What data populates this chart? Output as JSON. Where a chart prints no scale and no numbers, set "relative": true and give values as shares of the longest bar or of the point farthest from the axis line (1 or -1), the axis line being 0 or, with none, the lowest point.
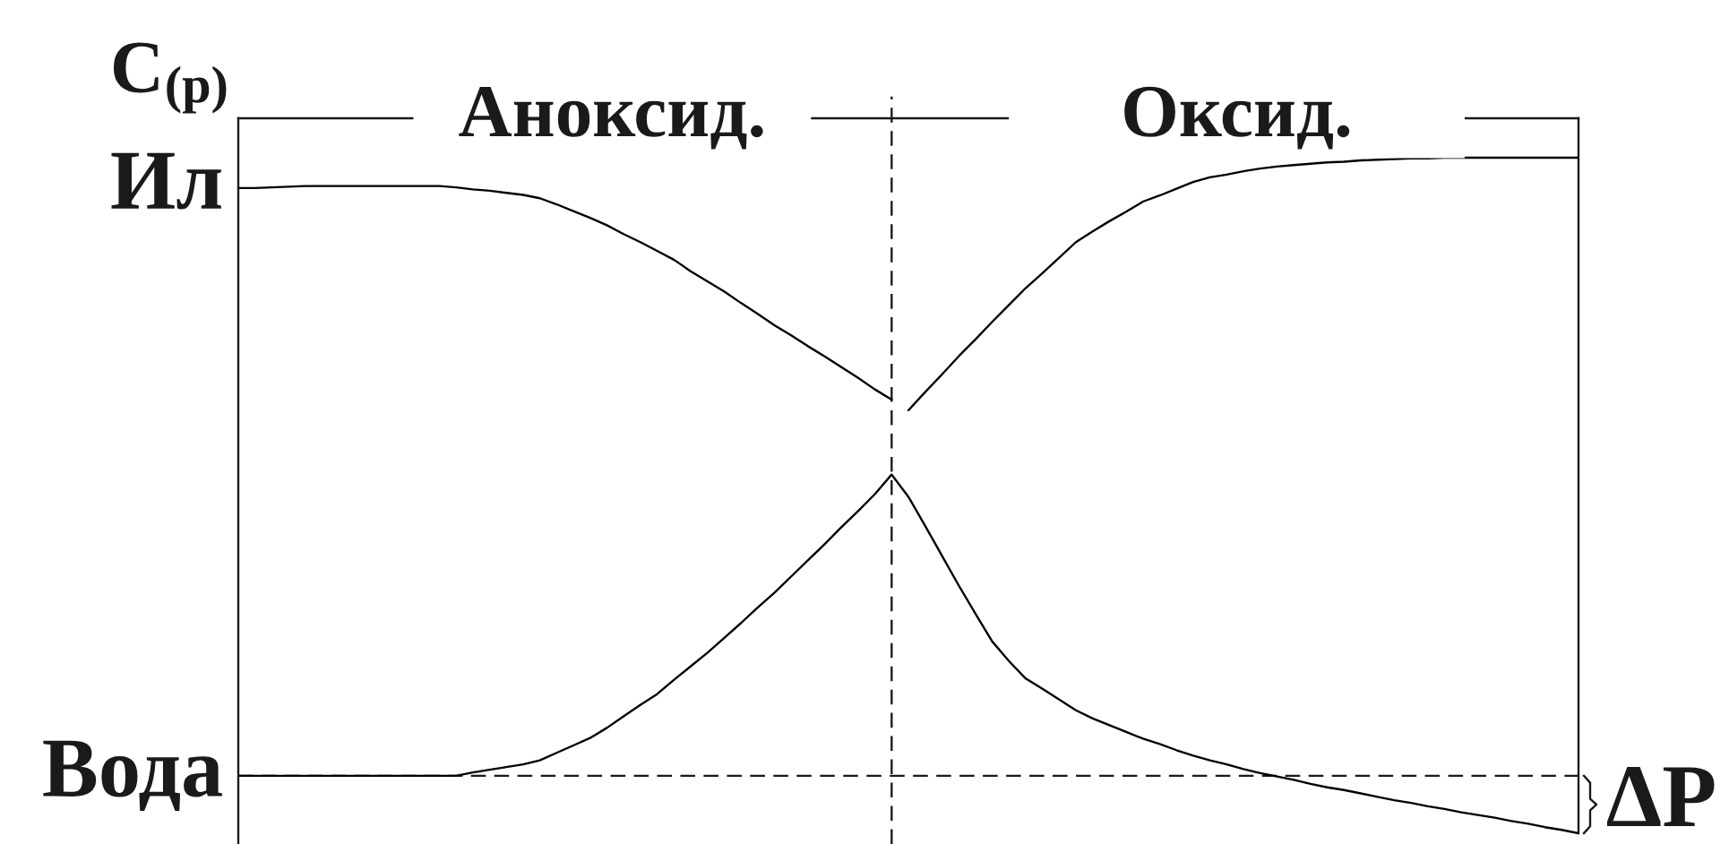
{
  "chart_data": {
    "type": "line",
    "relative": true,
    "ylabel": "C$_{(p)}$",
    "categories": [
      null,
      null,
      null,
      null,
      null,
      null,
      null,
      null,
      null,
      null,
      null,
      null,
      null,
      null,
      null,
      null,
      null,
      null,
      null,
      null,
      null,
      null,
      null,
      null,
      null,
      null,
      null,
      null,
      null,
      null,
      null,
      null,
      null,
      null,
      null,
      null,
      null,
      null,
      null,
      null,
      null,
      null,
      null,
      null,
      null,
      null,
      null,
      null,
      null,
      null,
      null,
      null,
      null,
      null,
      null,
      null,
      null,
      null,
      null,
      null,
      null,
      null,
      null,
      null,
      null,
      null,
      null,
      null,
      null,
      null,
      null,
      null,
      null,
      null,
      null,
      null,
      null,
      null,
      null,
      null,
      null
    ],
    "series": [
      {
        "name": "Ил",
        "color": "#000000",
        "values": [
          0.955,
          0.955,
          0.956,
          0.957,
          0.958,
          0.958,
          0.958,
          0.958,
          0.958,
          0.958,
          0.958,
          0.958,
          0.958,
          0.956,
          0.953,
          0.951,
          0.948,
          0.945,
          0.94,
          0.931,
          0.921,
          0.911,
          0.9,
          0.887,
          0.875,
          0.862,
          0.849,
          0.832,
          0.817,
          0.802,
          0.785,
          0.769,
          0.752,
          0.737,
          0.721,
          0.706,
          0.69,
          0.674,
          0.657,
          0.642,
          null,
          null,
          null,
          null,
          null,
          null,
          null,
          null,
          null,
          null,
          null,
          null,
          null,
          null,
          null,
          null,
          null,
          null,
          null,
          null,
          null,
          null,
          null,
          null,
          null,
          null,
          null,
          null,
          null,
          null,
          null,
          null,
          null,
          null,
          null,
          null,
          null,
          null,
          null,
          null,
          null
        ]
      },
      {
        "color": "#000000",
        "values": [
          null,
          null,
          null,
          null,
          null,
          null,
          null,
          null,
          null,
          null,
          null,
          null,
          null,
          null,
          null,
          null,
          null,
          null,
          null,
          null,
          null,
          null,
          null,
          null,
          null,
          null,
          null,
          null,
          null,
          null,
          null,
          null,
          null,
          null,
          null,
          null,
          null,
          null,
          null,
          null,
          0.626,
          0.653,
          0.679,
          0.706,
          0.731,
          0.757,
          0.782,
          0.807,
          0.829,
          0.852,
          0.875,
          0.891,
          0.906,
          0.92,
          0.935,
          0.944,
          0.954,
          0.964,
          0.971,
          0.975,
          0.98,
          0.984,
          0.987,
          0.989,
          0.991,
          0.993,
          0.994,
          0.996,
          0.997,
          0.998,
          0.999,
          0.999,
          1,
          1,
          1,
          1,
          1,
          1,
          1,
          1,
          1
        ]
      },
      {
        "name": "Вода",
        "color": "#000000",
        "values": [
          0.085,
          0.085,
          0.085,
          0.085,
          0.085,
          0.085,
          0.085,
          0.085,
          0.085,
          0.085,
          0.085,
          0.085,
          0.085,
          0.085,
          0.09,
          0.094,
          0.098,
          0.102,
          0.108,
          0.119,
          0.13,
          0.141,
          0.156,
          0.173,
          0.19,
          0.206,
          0.227,
          0.247,
          0.267,
          0.289,
          0.311,
          0.334,
          0.356,
          0.38,
          0.404,
          0.428,
          0.453,
          0.477,
          0.502,
          0.531,
          0.498,
          0.455,
          0.411,
          0.367,
          0.325,
          0.284,
          0.255,
          0.229,
          0.214,
          0.198,
          0.182,
          0.17,
          0.16,
          0.15,
          0.14,
          0.132,
          0.123,
          0.115,
          0.108,
          0.102,
          0.095,
          0.089,
          0.084,
          0.079,
          0.073,
          0.068,
          0.064,
          0.059,
          0.054,
          0.049,
          0.045,
          0.04,
          0.036,
          0.031,
          0.027,
          0.023,
          0.018,
          0.014,
          0.009,
          0.005,
          0
        ]
      }
    ],
    "ref_lines": [
      {
        "axis": "y",
        "value": 0.085,
        "line_style": "dashed"
      }
    ],
    "annotations": [
      "Аноксид.",
      "Оксид.",
      "ΔP"
    ]
  }
}
